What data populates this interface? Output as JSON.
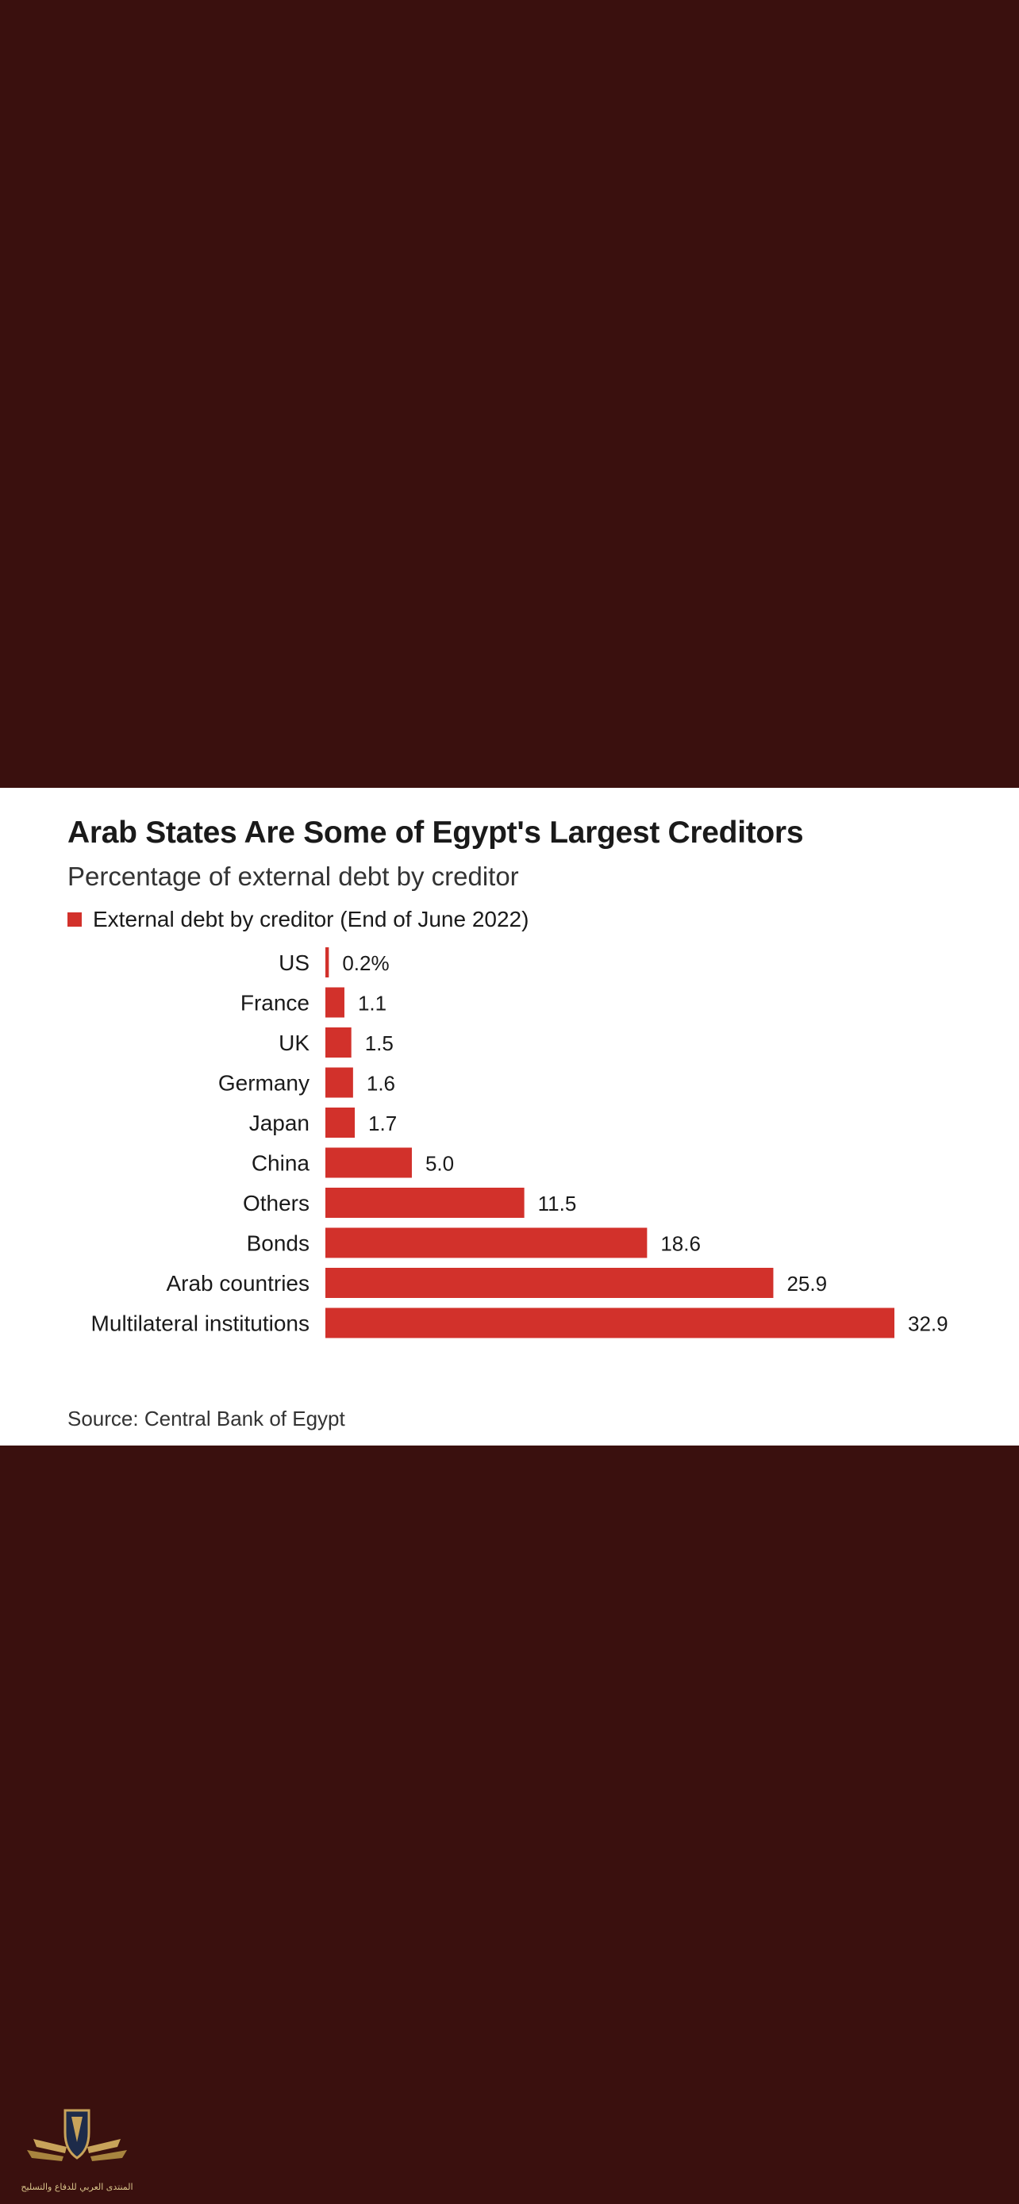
{
  "colors": {
    "background": "#3a100e",
    "card": "#ffffff",
    "bar": "#d2312b",
    "text": "#1a1a1a"
  },
  "chart_data": {
    "type": "bar",
    "orientation": "horizontal",
    "title": "Arab States Are Some of Egypt's Largest Creditors",
    "subtitle": "Percentage of external debt by creditor",
    "legend": "External debt by creditor (End of June 2022)",
    "legend_position": "top-left",
    "grid": false,
    "categories": [
      "US",
      "France",
      "UK",
      "Germany",
      "Japan",
      "China",
      "Others",
      "Bonds",
      "Arab countries",
      "Multilateral institutions"
    ],
    "values": [
      0.2,
      1.1,
      1.5,
      1.6,
      1.7,
      5.0,
      11.5,
      18.6,
      25.9,
      32.9
    ],
    "value_labels": [
      "0.2%",
      "1.1",
      "1.5",
      "1.6",
      "1.7",
      "5.0",
      "11.5",
      "18.6",
      "25.9",
      "32.9"
    ],
    "xlim": [
      0,
      32.9
    ],
    "source": "Source: Central Bank of Egypt"
  },
  "watermark": {
    "caption": "المنتدى العربي للدفاع والتسليح",
    "icon": "shield-wings-logo"
  }
}
